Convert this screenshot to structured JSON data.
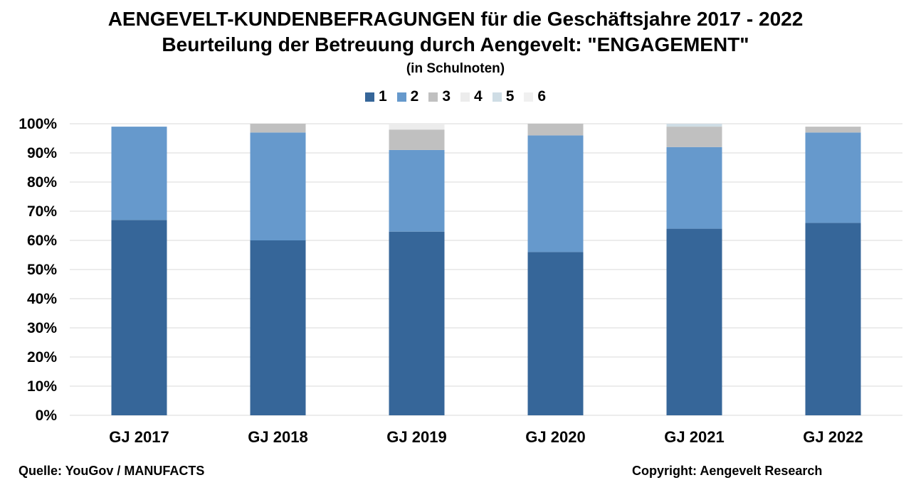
{
  "header": {
    "title": "AENGEVELT-KUNDENBEFRAGUNGEN für die Geschäftsjahre 2017 - 2022",
    "subtitle": "Beurteilung der Betreuung durch Aengevelt:  \"ENGAGEMENT\"",
    "note": "(in Schulnoten)"
  },
  "footer": {
    "source": "Quelle: YouGov / MANUFACTS",
    "copyright": "Copyright: Aengevelt Research"
  },
  "chart_data": {
    "type": "bar",
    "stacked": true,
    "categories": [
      "GJ 2017",
      "GJ 2018",
      "GJ 2019",
      "GJ 2020",
      "GJ 2021",
      "GJ 2022"
    ],
    "ylim": [
      0,
      100
    ],
    "yticks": [
      "0%",
      "10%",
      "20%",
      "30%",
      "40%",
      "50%",
      "60%",
      "70%",
      "80%",
      "90%",
      "100%"
    ],
    "grid": true,
    "legend_position": "top-center",
    "series": [
      {
        "name": "1",
        "color": "#366699",
        "values": [
          67,
          60,
          63,
          56,
          64,
          66
        ]
      },
      {
        "name": "2",
        "color": "#6699cc",
        "values": [
          32,
          37,
          28,
          40,
          28,
          31
        ]
      },
      {
        "name": "3",
        "color": "#c0c0c0",
        "values": [
          0,
          3,
          7,
          4,
          7,
          2
        ]
      },
      {
        "name": "4",
        "color": "#ececec",
        "values": [
          0,
          0,
          2,
          0,
          0,
          0
        ]
      },
      {
        "name": "5",
        "color": "#cfdde5",
        "values": [
          0,
          0,
          0,
          0,
          1,
          0
        ]
      },
      {
        "name": "6",
        "color": "#f0f0f0",
        "values": [
          0,
          0,
          0,
          0,
          0,
          0
        ]
      }
    ]
  }
}
